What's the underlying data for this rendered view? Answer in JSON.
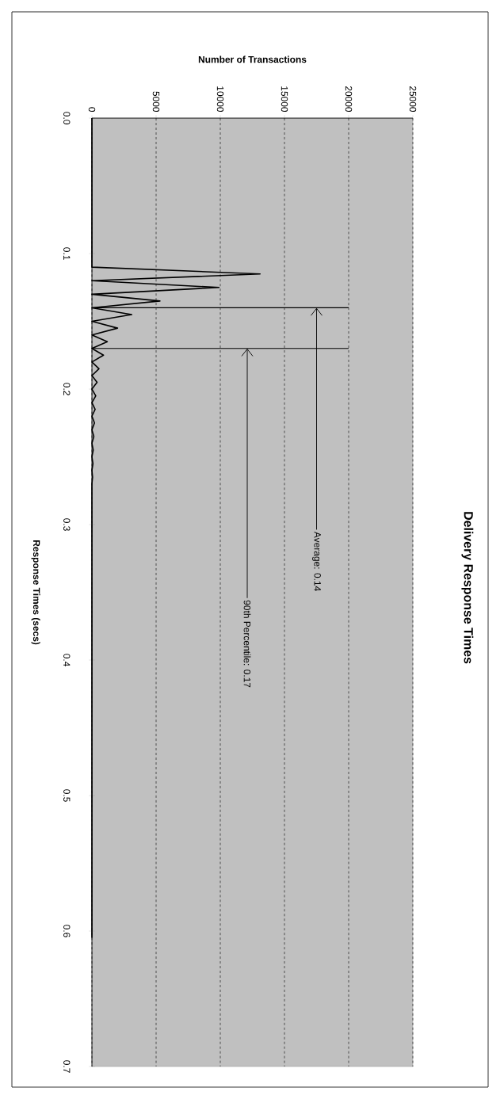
{
  "chart_data": {
    "type": "line",
    "title": "Delivery Response Times",
    "xlabel": "Number of Transactions",
    "ylabel": "Response Times (secs)",
    "x": [
      0,
      0,
      13100,
      0,
      9900,
      0,
      5300,
      0,
      3100,
      0,
      2000,
      0,
      1200,
      0,
      900,
      0,
      550,
      0,
      400,
      0,
      300,
      0,
      250,
      0,
      200,
      0,
      150,
      0,
      100,
      0,
      80,
      0,
      50,
      0,
      0
    ],
    "values": [
      0,
      0.11,
      0.115,
      0.12,
      0.125,
      0.13,
      0.135,
      0.14,
      0.145,
      0.15,
      0.155,
      0.16,
      0.165,
      0.17,
      0.175,
      0.18,
      0.185,
      0.19,
      0.195,
      0.2,
      0.205,
      0.21,
      0.215,
      0.22,
      0.225,
      0.23,
      0.235,
      0.24,
      0.245,
      0.25,
      0.255,
      0.26,
      0.265,
      0.27,
      0.605
    ],
    "color": "#000000",
    "xlim": [
      0,
      25000
    ],
    "ylim": [
      0.7,
      0
    ],
    "xticks": [
      0,
      5000,
      10000,
      15000,
      20000,
      25000
    ],
    "yticks": [
      {
        "value": 0,
        "label": "0.0"
      },
      0.1,
      0.2,
      0.3,
      0.4,
      0.5,
      0.6,
      0.7
    ],
    "grid": "x",
    "marker": "none",
    "line_style": "solid",
    "ref_lines": [
      {
        "axis": "y",
        "value": 0.14,
        "label": "Average: 0.14"
      },
      {
        "axis": "y",
        "value": 0.17,
        "label": "90th Percentile: 0.17"
      }
    ]
  }
}
